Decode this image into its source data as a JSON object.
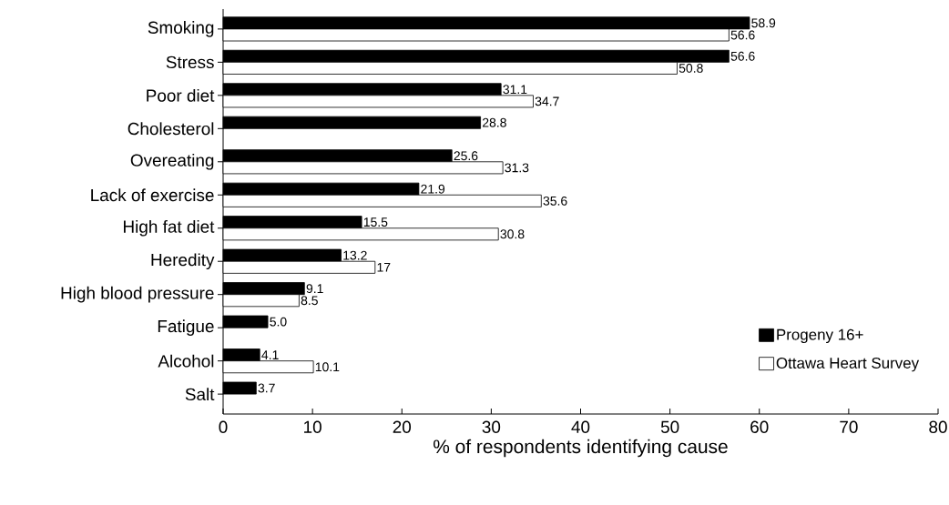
{
  "chart_data": {
    "type": "bar",
    "orientation": "horizontal",
    "xlabel": "% of  respondents identifying cause",
    "categories": [
      "Smoking",
      "Stress",
      "Poor diet",
      "Cholesterol",
      "Overeating",
      "Lack of exercise",
      "High fat diet",
      "Heredity",
      "High blood pressure",
      "Fatigue",
      "Alcohol",
      "Salt"
    ],
    "series": [
      {
        "name": "Progeny 16+",
        "color": "#000000",
        "values": [
          58.9,
          56.6,
          31.1,
          28.8,
          25.6,
          21.9,
          15.5,
          13.2,
          9.1,
          5.0,
          4.1,
          3.7
        ],
        "value_labels": [
          "58.9",
          "56.6",
          "31.1",
          "28.8",
          "25.6",
          "21.9",
          "15.5",
          "13.2",
          "9.1",
          "5.0",
          "4.1",
          "3.7"
        ]
      },
      {
        "name": "Ottawa Heart Survey",
        "color": "#ffffff",
        "values": [
          56.6,
          50.8,
          34.7,
          null,
          31.3,
          35.6,
          30.8,
          17,
          8.5,
          null,
          10.1,
          null
        ],
        "value_labels": [
          "56.6",
          "50.8",
          "34.7",
          null,
          "31.3",
          "35.6",
          "30.8",
          "17",
          "8.5",
          null,
          "10.1",
          null
        ]
      }
    ],
    "xlim": [
      0,
      80
    ],
    "xticks": [
      0,
      10,
      20,
      30,
      40,
      50,
      60,
      70,
      80
    ],
    "legend": "bottom right",
    "grid": false
  }
}
